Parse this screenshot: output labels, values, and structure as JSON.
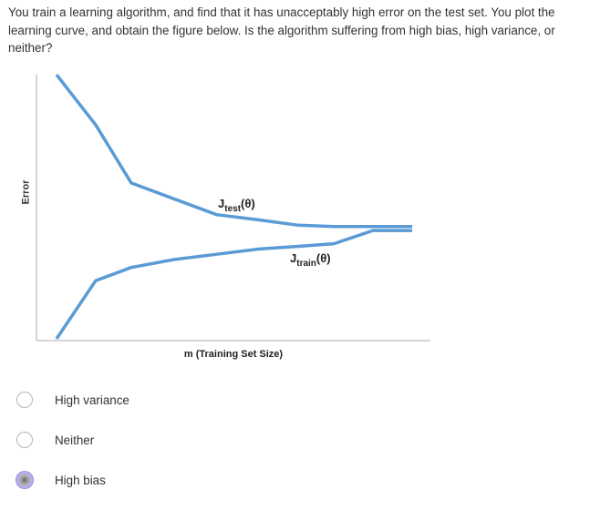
{
  "question": {
    "text": "You train a learning algorithm, and find that it has unacceptably high error on the test set. You plot the learning curve, and obtain the figure below. Is the algorithm suffering from high bias, high variance, or neither?"
  },
  "chart_data": {
    "type": "line",
    "xlabel": "m (Training Set Size)",
    "ylabel": "Error",
    "grid": false,
    "series": [
      {
        "name": "J_test(θ)",
        "label_main": "J",
        "label_sub": "test",
        "label_tail": "(θ)",
        "color": "#5b9bd5",
        "x": [
          0.0,
          0.11,
          0.21,
          0.33,
          0.45,
          0.57,
          0.68,
          0.78,
          0.89,
          1.0
        ],
        "y": [
          1.0,
          0.81,
          0.59,
          0.53,
          0.47,
          0.45,
          0.43,
          0.425,
          0.425,
          0.425
        ]
      },
      {
        "name": "J_train(θ)",
        "label_main": "J",
        "label_sub": "train",
        "label_tail": "(θ)",
        "color": "#5b9bd5",
        "x": [
          0.0,
          0.11,
          0.21,
          0.33,
          0.45,
          0.57,
          0.68,
          0.78,
          0.89,
          1.0
        ],
        "y": [
          0.0,
          0.22,
          0.27,
          0.3,
          0.32,
          0.34,
          0.35,
          0.36,
          0.41,
          0.41
        ]
      }
    ]
  },
  "options": [
    {
      "label": "High variance",
      "checked": false
    },
    {
      "label": "Neither",
      "checked": false
    },
    {
      "label": "High bias",
      "checked": true
    }
  ]
}
